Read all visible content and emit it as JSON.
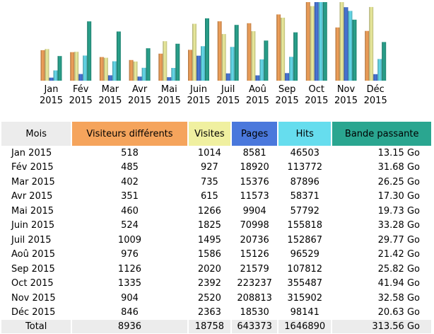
{
  "colors": {
    "visitors": "#f5a45c",
    "visits": "#f0f0a0",
    "pages": "#4a78dc",
    "hits": "#66ddee",
    "bandwidth": "#2aa690",
    "header_month": "#ececec",
    "total_row": "#ececec"
  },
  "chart_data": {
    "type": "bar",
    "categories": [
      [
        "Jan",
        "2015"
      ],
      [
        "Fév",
        "2015"
      ],
      [
        "Mar",
        "2015"
      ],
      [
        "Avr",
        "2015"
      ],
      [
        "Mai",
        "2015"
      ],
      [
        "Juin",
        "2015"
      ],
      [
        "Juil",
        "2015"
      ],
      [
        "Aoû",
        "2015"
      ],
      [
        "Sep",
        "2015"
      ],
      [
        "Oct",
        "2015"
      ],
      [
        "Nov",
        "2015"
      ],
      [
        "Déc",
        "2015"
      ]
    ],
    "series": [
      {
        "name": "Visiteurs différents",
        "key": "visitors",
        "values": [
          518,
          485,
          402,
          351,
          460,
          524,
          1009,
          976,
          1126,
          1335,
          904,
          846
        ]
      },
      {
        "name": "Visites",
        "key": "visits",
        "values": [
          1014,
          927,
          735,
          615,
          1266,
          1825,
          1495,
          1586,
          2020,
          2392,
          2520,
          2363
        ]
      },
      {
        "name": "Pages",
        "key": "pages",
        "values": [
          8581,
          18920,
          15376,
          11573,
          9904,
          70998,
          20736,
          15126,
          21579,
          223237,
          208813,
          18530
        ]
      },
      {
        "name": "Hits",
        "key": "hits",
        "values": [
          46503,
          113772,
          87896,
          58371,
          57792,
          155818,
          152867,
          96529,
          107812,
          355487,
          315902,
          98141
        ]
      },
      {
        "name": "Bande passante",
        "key": "bandwidth",
        "values": [
          13.15,
          31.68,
          26.25,
          17.3,
          19.73,
          33.28,
          29.77,
          21.42,
          25.82,
          41.94,
          32.58,
          20.63
        ]
      }
    ]
  },
  "table": {
    "headers": {
      "month": "Mois",
      "visitors": "Visiteurs différents",
      "visits": "Visites",
      "pages": "Pages",
      "hits": "Hits",
      "bandwidth": "Bande passante"
    },
    "rows": [
      {
        "month": "Jan 2015",
        "visitors": "518",
        "visits": "1014",
        "pages": "8581",
        "hits": "46503",
        "bandwidth": "13.15 Go"
      },
      {
        "month": "Fév 2015",
        "visitors": "485",
        "visits": "927",
        "pages": "18920",
        "hits": "113772",
        "bandwidth": "31.68 Go"
      },
      {
        "month": "Mar 2015",
        "visitors": "402",
        "visits": "735",
        "pages": "15376",
        "hits": "87896",
        "bandwidth": "26.25 Go"
      },
      {
        "month": "Avr 2015",
        "visitors": "351",
        "visits": "615",
        "pages": "11573",
        "hits": "58371",
        "bandwidth": "17.30 Go"
      },
      {
        "month": "Mai 2015",
        "visitors": "460",
        "visits": "1266",
        "pages": "9904",
        "hits": "57792",
        "bandwidth": "19.73 Go"
      },
      {
        "month": "Juin 2015",
        "visitors": "524",
        "visits": "1825",
        "pages": "70998",
        "hits": "155818",
        "bandwidth": "33.28 Go"
      },
      {
        "month": "Juil 2015",
        "visitors": "1009",
        "visits": "1495",
        "pages": "20736",
        "hits": "152867",
        "bandwidth": "29.77 Go"
      },
      {
        "month": "Aoû 2015",
        "visitors": "976",
        "visits": "1586",
        "pages": "15126",
        "hits": "96529",
        "bandwidth": "21.42 Go"
      },
      {
        "month": "Sep 2015",
        "visitors": "1126",
        "visits": "2020",
        "pages": "21579",
        "hits": "107812",
        "bandwidth": "25.82 Go"
      },
      {
        "month": "Oct 2015",
        "visitors": "1335",
        "visits": "2392",
        "pages": "223237",
        "hits": "355487",
        "bandwidth": "41.94 Go"
      },
      {
        "month": "Nov 2015",
        "visitors": "904",
        "visits": "2520",
        "pages": "208813",
        "hits": "315902",
        "bandwidth": "32.58 Go"
      },
      {
        "month": "Déc 2015",
        "visitors": "846",
        "visits": "2363",
        "pages": "18530",
        "hits": "98141",
        "bandwidth": "20.63 Go"
      }
    ],
    "total": {
      "month": "Total",
      "visitors": "8936",
      "visits": "18758",
      "pages": "643373",
      "hits": "1646890",
      "bandwidth": "313.56 Go"
    }
  }
}
